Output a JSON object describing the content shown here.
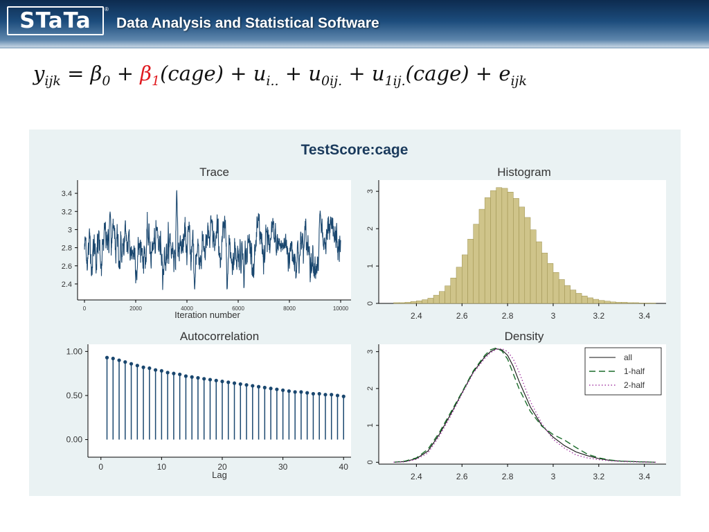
{
  "header": {
    "logo_text": "STaTa",
    "registered_mark": "®",
    "tagline": "Data Analysis and Statistical Software"
  },
  "equation": {
    "lhs": "y",
    "lhs_sub": "ijk",
    "equals": "=",
    "beta0": "β",
    "beta0_sub": "0",
    "plus1": "+",
    "beta1": "β",
    "beta1_sub": "1",
    "term1": "(cage)",
    "plus2": "+",
    "u1": "u",
    "u1_sub": "i..",
    "plus3": "+",
    "u2": "u",
    "u2_sub": "0ij.",
    "plus4": "+",
    "u3": "u",
    "u3_sub": "1ij.",
    "term2": "(cage)",
    "plus5": "+",
    "e": "e",
    "e_sub": "ijk",
    "highlight_color": "#e0191f"
  },
  "figure": {
    "title": "TestScore:cage",
    "colors": {
      "panel_bg": "#eaf2f3",
      "series": "#1a476f",
      "hist_fill": "#cfc48a",
      "hist_stroke": "#9a8f4c"
    }
  },
  "chart_data": [
    {
      "type": "line",
      "title": "Trace",
      "xlabel": "Iteration number",
      "ylabel": "",
      "xlim": [
        0,
        10000
      ],
      "ylim": [
        2.3,
        3.5
      ],
      "x_ticks": [
        "0",
        "2000",
        "4000",
        "6000",
        "8000",
        "10000"
      ],
      "y_ticks": [
        "2.4",
        "2.6",
        "2.8",
        "3",
        "3.2",
        "3.4"
      ],
      "series": [
        {
          "mean": 2.8,
          "min": 2.3,
          "max": 3.45,
          "peaks": [
            {
              "x": 3600,
              "y": 3.45
            },
            {
              "x": 9200,
              "y": 3.21
            },
            {
              "x": 1000,
              "y": 3.2
            },
            {
              "x": 4300,
              "y": 2.32
            }
          ]
        }
      ]
    },
    {
      "type": "bar",
      "title": "Histogram",
      "xlabel": "",
      "ylabel": "",
      "xlim": [
        2.25,
        3.48
      ],
      "ylim": [
        0,
        3.3
      ],
      "x_ticks": [
        "2.4",
        "2.6",
        "2.8",
        "3",
        "3.2",
        "3.4"
      ],
      "y_ticks": [
        "0",
        "1",
        "2",
        "3"
      ],
      "bin_start": 2.3,
      "bin_width": 0.025,
      "values": [
        0.02,
        0.02,
        0.03,
        0.05,
        0.07,
        0.1,
        0.14,
        0.22,
        0.32,
        0.47,
        0.68,
        0.97,
        1.3,
        1.72,
        2.12,
        2.52,
        2.83,
        3.02,
        3.1,
        3.08,
        2.98,
        2.81,
        2.58,
        2.3,
        1.97,
        1.65,
        1.35,
        1.07,
        0.83,
        0.64,
        0.48,
        0.36,
        0.27,
        0.2,
        0.15,
        0.11,
        0.08,
        0.06,
        0.04,
        0.03,
        0.03,
        0.02,
        0.02,
        0.01,
        0.01,
        0.01
      ]
    },
    {
      "type": "scatter",
      "title": "Autocorrelation",
      "xlabel": "Lag",
      "ylabel": "",
      "xlim": [
        -1,
        41
      ],
      "ylim": [
        -0.2,
        1.05
      ],
      "x_ticks": [
        "0",
        "10",
        "20",
        "30",
        "40"
      ],
      "y_ticks": [
        "0.00",
        "0.50",
        "1.00"
      ],
      "x": [
        1,
        2,
        3,
        4,
        5,
        6,
        7,
        8,
        9,
        10,
        11,
        12,
        13,
        14,
        15,
        16,
        17,
        18,
        19,
        20,
        21,
        22,
        23,
        24,
        25,
        26,
        27,
        28,
        29,
        30,
        31,
        32,
        33,
        34,
        35,
        36,
        37,
        38,
        39,
        40
      ],
      "values": [
        0.93,
        0.92,
        0.9,
        0.88,
        0.86,
        0.84,
        0.82,
        0.81,
        0.79,
        0.78,
        0.76,
        0.75,
        0.74,
        0.72,
        0.71,
        0.7,
        0.69,
        0.68,
        0.67,
        0.66,
        0.65,
        0.64,
        0.63,
        0.62,
        0.61,
        0.6,
        0.59,
        0.58,
        0.57,
        0.56,
        0.55,
        0.54,
        0.54,
        0.53,
        0.52,
        0.52,
        0.51,
        0.51,
        0.5,
        0.49
      ]
    },
    {
      "type": "line",
      "title": "Density",
      "xlabel": "",
      "ylabel": "",
      "xlim": [
        2.25,
        3.48
      ],
      "ylim": [
        -0.05,
        3.2
      ],
      "x_ticks": [
        "2.4",
        "2.6",
        "2.8",
        "3",
        "3.2",
        "3.4"
      ],
      "y_ticks": [
        "0",
        "1",
        "2",
        "3"
      ],
      "legend_position": "top-right",
      "x": [
        2.3,
        2.35,
        2.4,
        2.45,
        2.5,
        2.55,
        2.6,
        2.65,
        2.7,
        2.725,
        2.75,
        2.775,
        2.8,
        2.825,
        2.85,
        2.9,
        2.95,
        3.0,
        3.05,
        3.1,
        3.15,
        3.2,
        3.25,
        3.3,
        3.35,
        3.4,
        3.45
      ],
      "series": [
        {
          "name": "all",
          "values": [
            0.0,
            0.02,
            0.1,
            0.3,
            0.75,
            1.3,
            1.88,
            2.45,
            2.86,
            3.0,
            3.08,
            3.05,
            2.9,
            2.6,
            2.2,
            1.5,
            1.0,
            0.68,
            0.45,
            0.28,
            0.18,
            0.1,
            0.05,
            0.03,
            0.02,
            0.01,
            0.0
          ]
        },
        {
          "name": "1-half",
          "values": [
            0.0,
            0.03,
            0.12,
            0.35,
            0.8,
            1.35,
            1.9,
            2.48,
            2.9,
            3.05,
            3.1,
            3.02,
            2.8,
            2.4,
            2.0,
            1.38,
            0.98,
            0.75,
            0.6,
            0.4,
            0.22,
            0.12,
            0.06,
            0.03,
            0.02,
            0.01,
            0.0
          ]
        },
        {
          "name": "2-half",
          "values": [
            0.0,
            0.01,
            0.08,
            0.25,
            0.7,
            1.25,
            1.85,
            2.42,
            2.82,
            2.97,
            3.06,
            3.08,
            3.0,
            2.8,
            2.45,
            1.65,
            1.05,
            0.62,
            0.38,
            0.2,
            0.12,
            0.07,
            0.04,
            0.02,
            0.01,
            0.0,
            0.0
          ]
        }
      ]
    }
  ]
}
